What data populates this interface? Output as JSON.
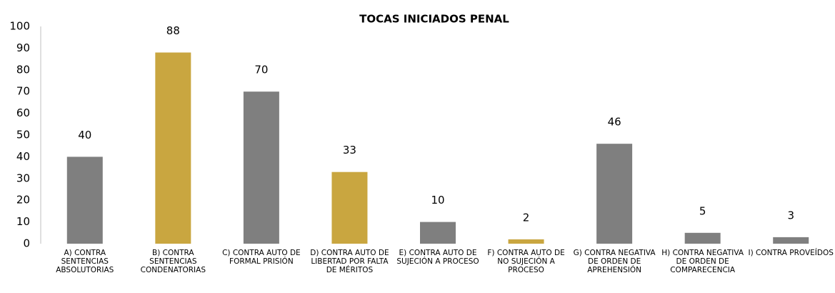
{
  "chart_data": {
    "type": "bar",
    "title": "TOCAS INICIADOS PENAL",
    "categories": [
      "A) CONTRA SENTENCIAS ABSOLUTORIAS",
      "B) CONTRA SENTENCIAS CONDENATORIAS",
      "C) CONTRA AUTO DE FORMAL PRISIÓN",
      "D) CONTRA AUTO DE LIBERTAD POR FALTA DE MÉRITOS",
      "E) CONTRA AUTO DE SUJECIÓN A PROCESO",
      "F) CONTRA AUTO DE NO SUJECIÓN A PROCESO",
      "G) CONTRA NEGATIVA DE ORDEN DE APREHENSIÓN",
      "H) CONTRA NEGATIVA DE ORDEN DE COMPARECENCIA",
      "I) CONTRA PROVEÍDOS"
    ],
    "values": [
      40,
      88,
      70,
      33,
      10,
      2,
      46,
      5,
      3
    ],
    "colors": [
      "#7f7f7f",
      "#c9a640",
      "#7f7f7f",
      "#c9a640",
      "#7f7f7f",
      "#c9a640",
      "#7f7f7f",
      "#7f7f7f",
      "#7f7f7f"
    ],
    "ylim": [
      0,
      100
    ],
    "yticks": [
      0,
      10,
      20,
      30,
      40,
      50,
      60,
      70,
      80,
      90,
      100
    ],
    "grid": false
  }
}
